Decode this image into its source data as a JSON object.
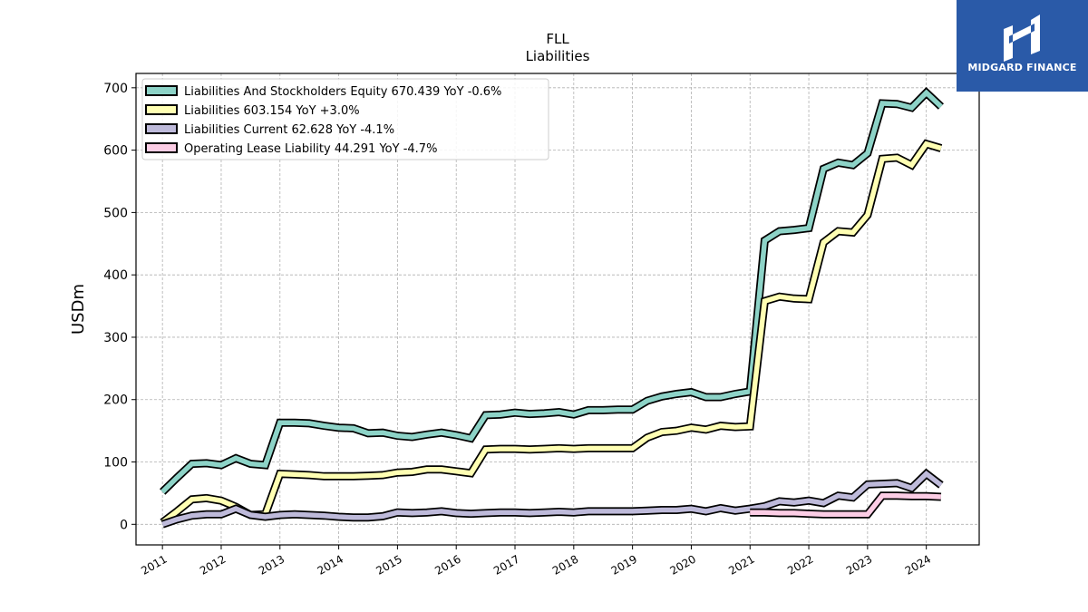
{
  "brand": {
    "name": "MIDGARD FINANCE",
    "color": "#2a5aa8"
  },
  "chart_data": {
    "type": "line",
    "title": "FLL",
    "subtitle": "Liabilities",
    "xlabel": "",
    "ylabel": "USDm",
    "xlim": [
      2010.55,
      2024.9
    ],
    "ylim": [
      -33,
      723
    ],
    "yticks": [
      0,
      100,
      200,
      300,
      400,
      500,
      600,
      700
    ],
    "xticks": [
      "2011",
      "2012",
      "2013",
      "2014",
      "2015",
      "2016",
      "2017",
      "2018",
      "2019",
      "2020",
      "2021",
      "2022",
      "2023",
      "2024"
    ],
    "grid": true,
    "legend_position": "top-left",
    "series": [
      {
        "name": "Liabilities And Stockholders Equity",
        "legend_label": "Liabilities And Stockholders Equity  670.439 YoY -0.6%",
        "color": "#8dd3c7",
        "x": [
          2011.0,
          2011.25,
          2011.5,
          2011.75,
          2012.0,
          2012.25,
          2012.5,
          2012.75,
          2013.0,
          2013.25,
          2013.5,
          2013.75,
          2014.0,
          2014.25,
          2014.5,
          2014.75,
          2015.0,
          2015.25,
          2015.5,
          2015.75,
          2016.0,
          2016.25,
          2016.5,
          2016.75,
          2017.0,
          2017.25,
          2017.5,
          2017.75,
          2018.0,
          2018.25,
          2018.5,
          2018.75,
          2019.0,
          2019.25,
          2019.5,
          2019.75,
          2020.0,
          2020.25,
          2020.5,
          2020.75,
          2021.0,
          2021.25,
          2021.5,
          2021.75,
          2022.0,
          2022.25,
          2022.5,
          2022.75,
          2023.0,
          2023.25,
          2023.5,
          2023.75,
          2024.0,
          2024.25
        ],
        "y": [
          52,
          75,
          97,
          98,
          95,
          106,
          97,
          95,
          163,
          163,
          162,
          158,
          155,
          154,
          146,
          147,
          142,
          140,
          144,
          147,
          143,
          138,
          175,
          176,
          179,
          177,
          178,
          180,
          176,
          183,
          183,
          184,
          184,
          198,
          205,
          209,
          212,
          204,
          204,
          209,
          213,
          455,
          470,
          472,
          475,
          570,
          580,
          576,
          595,
          675,
          674,
          668,
          692,
          670
        ]
      },
      {
        "name": "Liabilities",
        "legend_label": "Liabilities  603.154 YoY +3.0%",
        "color": "#ffffb3",
        "x": [
          2011.0,
          2011.25,
          2011.5,
          2011.75,
          2012.0,
          2012.25,
          2012.5,
          2012.75,
          2013.0,
          2013.25,
          2013.5,
          2013.75,
          2014.0,
          2014.25,
          2014.5,
          2014.75,
          2015.0,
          2015.25,
          2015.5,
          2015.75,
          2016.0,
          2016.25,
          2016.5,
          2016.75,
          2017.0,
          2017.25,
          2017.5,
          2017.75,
          2018.0,
          2018.25,
          2018.5,
          2018.75,
          2019.0,
          2019.25,
          2019.5,
          2019.75,
          2020.0,
          2020.25,
          2020.5,
          2020.75,
          2021.0,
          2021.25,
          2021.5,
          2021.75,
          2022.0,
          2022.25,
          2022.5,
          2022.75,
          2023.0,
          2023.25,
          2023.5,
          2023.75,
          2024.0,
          2024.25
        ],
        "y": [
          3,
          21,
          40,
          42,
          38,
          28,
          15,
          16,
          81,
          80,
          79,
          77,
          77,
          77,
          78,
          79,
          83,
          84,
          88,
          88,
          85,
          82,
          120,
          121,
          121,
          120,
          121,
          122,
          121,
          122,
          122,
          122,
          122,
          139,
          148,
          150,
          155,
          152,
          158,
          156,
          157,
          358,
          365,
          362,
          361,
          452,
          470,
          468,
          496,
          586,
          588,
          576,
          610,
          603
        ]
      },
      {
        "name": "Liabilities Current",
        "legend_label": "Liabilities Current  62.628 YoY -4.1%",
        "color": "#bebada",
        "x": [
          2011.0,
          2011.25,
          2011.5,
          2011.75,
          2012.0,
          2012.25,
          2012.5,
          2012.75,
          2013.0,
          2013.25,
          2013.5,
          2013.75,
          2014.0,
          2014.25,
          2014.5,
          2014.75,
          2015.0,
          2015.25,
          2015.5,
          2015.75,
          2016.0,
          2016.25,
          2016.5,
          2016.75,
          2017.0,
          2017.25,
          2017.5,
          2017.75,
          2018.0,
          2018.25,
          2018.5,
          2018.75,
          2019.0,
          2019.25,
          2019.5,
          2019.75,
          2020.0,
          2020.25,
          2020.5,
          2020.75,
          2021.0,
          2021.25,
          2021.5,
          2021.75,
          2022.0,
          2022.25,
          2022.5,
          2022.75,
          2023.0,
          2023.25,
          2023.5,
          2023.75,
          2024.0,
          2024.25
        ],
        "y": [
          0,
          8,
          14,
          16,
          16,
          25,
          15,
          12,
          15,
          16,
          15,
          14,
          12,
          11,
          11,
          13,
          19,
          18,
          19,
          21,
          18,
          17,
          18,
          19,
          19,
          18,
          19,
          20,
          19,
          21,
          21,
          21,
          21,
          22,
          23,
          23,
          25,
          21,
          26,
          22,
          25,
          29,
          37,
          35,
          38,
          34,
          46,
          43,
          64,
          65,
          66,
          58,
          81,
          63
        ]
      },
      {
        "name": "Operating Lease Liability",
        "legend_label": "Operating Lease Liability  44.291 YoY -4.7%",
        "color": "#fccde5",
        "x": [
          2021.0,
          2021.25,
          2021.5,
          2021.75,
          2022.0,
          2022.25,
          2022.5,
          2022.75,
          2023.0,
          2023.25,
          2023.5,
          2023.75,
          2024.0,
          2024.25
        ],
        "y": [
          19,
          19,
          18,
          18,
          17,
          16,
          16,
          16,
          16,
          46,
          46,
          45,
          45,
          44
        ]
      }
    ]
  }
}
